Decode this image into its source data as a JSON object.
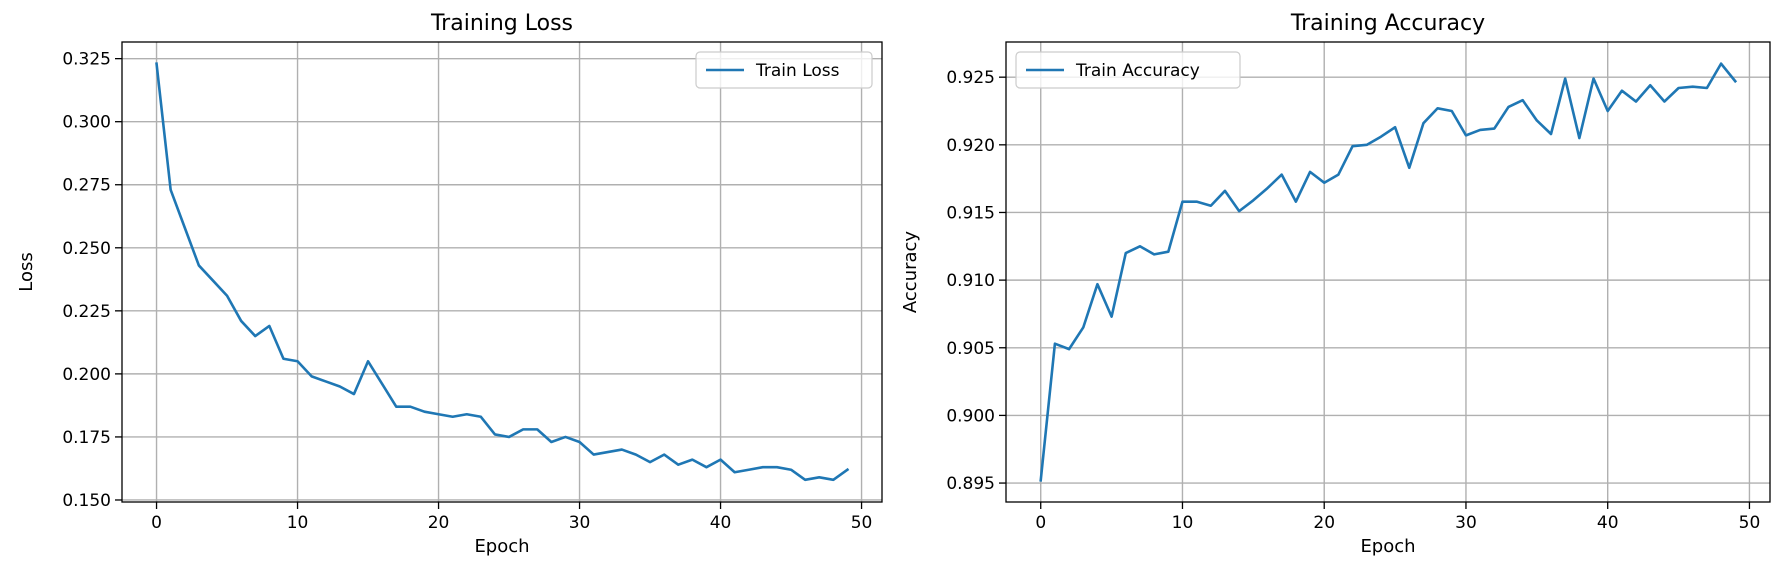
{
  "chart_data": [
    {
      "type": "line",
      "title": "Training Loss",
      "xlabel": "Epoch",
      "ylabel": "Loss",
      "xlim": [
        -2.45,
        51.45
      ],
      "ylim": [
        0.1492,
        0.3316
      ],
      "xticks": [
        0,
        10,
        20,
        30,
        40,
        50
      ],
      "yticks": [
        0.15,
        0.175,
        0.2,
        0.225,
        0.25,
        0.275,
        0.3,
        0.325
      ],
      "ytick_labels": [
        "0.150",
        "0.175",
        "0.200",
        "0.225",
        "0.250",
        "0.275",
        "0.300",
        "0.325"
      ],
      "grid": true,
      "legend": "top-right",
      "color": "#1f77b4",
      "series": [
        {
          "name": "Train Loss",
          "x": [
            0,
            1,
            2,
            3,
            4,
            5,
            6,
            7,
            8,
            9,
            10,
            11,
            12,
            13,
            14,
            15,
            16,
            17,
            18,
            19,
            20,
            21,
            22,
            23,
            24,
            25,
            26,
            27,
            28,
            29,
            30,
            31,
            32,
            33,
            34,
            35,
            36,
            37,
            38,
            39,
            40,
            41,
            42,
            43,
            44,
            45,
            46,
            47,
            48,
            49
          ],
          "y": [
            0.323,
            0.273,
            0.258,
            0.243,
            0.237,
            0.231,
            0.221,
            0.215,
            0.219,
            0.206,
            0.205,
            0.199,
            0.197,
            0.195,
            0.192,
            0.205,
            0.196,
            0.187,
            0.187,
            0.185,
            0.184,
            0.183,
            0.184,
            0.183,
            0.176,
            0.175,
            0.178,
            0.178,
            0.173,
            0.175,
            0.173,
            0.168,
            0.169,
            0.17,
            0.168,
            0.165,
            0.168,
            0.164,
            0.166,
            0.163,
            0.166,
            0.161,
            0.162,
            0.163,
            0.163,
            0.162,
            0.158,
            0.159,
            0.158,
            0.162
          ]
        }
      ]
    },
    {
      "type": "line",
      "title": "Training Accuracy",
      "xlabel": "Epoch",
      "ylabel": "Accuracy",
      "xlim": [
        -2.45,
        51.45
      ],
      "ylim": [
        0.8936,
        0.9276
      ],
      "xticks": [
        0,
        10,
        20,
        30,
        40,
        50
      ],
      "yticks": [
        0.895,
        0.9,
        0.905,
        0.91,
        0.915,
        0.92,
        0.925
      ],
      "ytick_labels": [
        "0.895",
        "0.900",
        "0.905",
        "0.910",
        "0.915",
        "0.920",
        "0.925"
      ],
      "grid": true,
      "legend": "top-left",
      "color": "#1f77b4",
      "series": [
        {
          "name": "Train Accuracy",
          "x": [
            0,
            1,
            2,
            3,
            4,
            5,
            6,
            7,
            8,
            9,
            10,
            11,
            12,
            13,
            14,
            15,
            16,
            17,
            18,
            19,
            20,
            21,
            22,
            23,
            24,
            25,
            26,
            27,
            28,
            29,
            30,
            31,
            32,
            33,
            34,
            35,
            36,
            37,
            38,
            39,
            40,
            41,
            42,
            43,
            44,
            45,
            46,
            47,
            48,
            49
          ],
          "y": [
            0.8952,
            0.9053,
            0.9049,
            0.9065,
            0.9097,
            0.9073,
            0.912,
            0.9125,
            0.9119,
            0.9121,
            0.9158,
            0.9158,
            0.9155,
            0.9166,
            0.9151,
            0.9159,
            0.9168,
            0.9178,
            0.9158,
            0.918,
            0.9172,
            0.9178,
            0.9199,
            0.92,
            0.9206,
            0.9213,
            0.9183,
            0.9216,
            0.9227,
            0.9225,
            0.9207,
            0.9211,
            0.9212,
            0.9228,
            0.9233,
            0.9218,
            0.9208,
            0.9249,
            0.9205,
            0.9249,
            0.9225,
            0.924,
            0.9232,
            0.9244,
            0.9232,
            0.9242,
            0.9243,
            0.9242,
            0.926,
            0.9247
          ]
        }
      ]
    }
  ]
}
